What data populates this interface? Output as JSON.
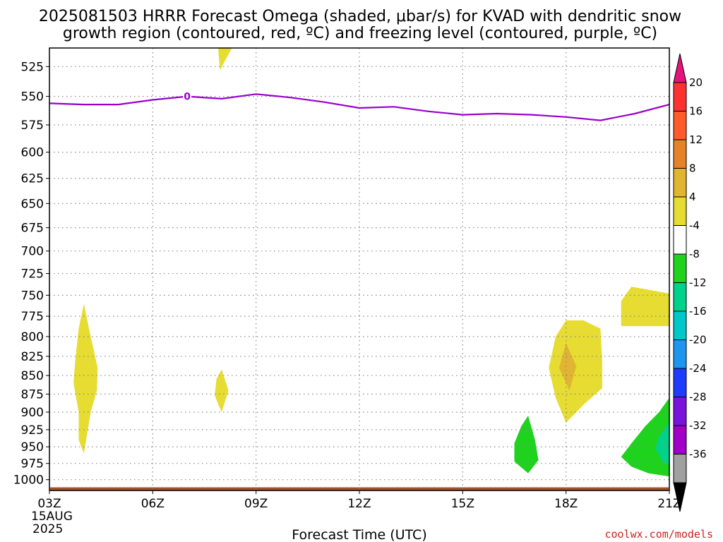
{
  "chart_data": {
    "type": "heatmap",
    "title_line1": "2025081503 HRRR Forecast Omega (shaded, μbar/s) for KVAD with dendritic snow",
    "title_line2": "growth region (contoured, red, ºC) and freezing level (contoured, purple, ºC)",
    "xlabel": "Forecast Time (UTC)",
    "x_tick_labels": [
      "03Z",
      "06Z",
      "09Z",
      "12Z",
      "15Z",
      "18Z",
      "21Z"
    ],
    "x_hours": [
      3,
      6,
      9,
      12,
      15,
      18,
      21
    ],
    "x_date_line1": "15AUG",
    "x_date_line2": "2025",
    "xlim": [
      3,
      21
    ],
    "y_ticks": [
      525,
      550,
      575,
      600,
      625,
      650,
      675,
      700,
      725,
      750,
      775,
      800,
      825,
      850,
      875,
      900,
      925,
      950,
      975,
      1000
    ],
    "y_tick_labels": [
      "525",
      "550",
      "575",
      "600",
      "625",
      "650",
      "675",
      "700",
      "725",
      "750",
      "775",
      "800",
      "825",
      "850",
      "875",
      "900",
      "925",
      "950",
      "975",
      "1000"
    ],
    "ylim": [
      510,
      1017
    ],
    "y_scale": "log",
    "y_inverted": true,
    "grid": true,
    "freezing_level": {
      "color": "#9900cc",
      "label": "0",
      "label_hour": 7.0,
      "points": [
        [
          3.0,
          556
        ],
        [
          4.0,
          557
        ],
        [
          5.0,
          557
        ],
        [
          6.0,
          553
        ],
        [
          7.0,
          550
        ],
        [
          8.0,
          552
        ],
        [
          9.0,
          548
        ],
        [
          10.0,
          551
        ],
        [
          11.0,
          555
        ],
        [
          12.0,
          560
        ],
        [
          13.0,
          559
        ],
        [
          14.0,
          563
        ],
        [
          15.0,
          566
        ],
        [
          16.0,
          565
        ],
        [
          17.0,
          566
        ],
        [
          18.0,
          568
        ],
        [
          19.0,
          571
        ],
        [
          20.0,
          565
        ],
        [
          21.0,
          557
        ]
      ]
    },
    "omega_regions": [
      {
        "level": "4 to 8",
        "color": "#e6dc32",
        "points": [
          [
            4.0,
            760
          ],
          [
            4.2,
            800
          ],
          [
            4.4,
            840
          ],
          [
            4.38,
            870
          ],
          [
            4.2,
            900
          ],
          [
            4.0,
            960
          ],
          [
            3.85,
            940
          ],
          [
            3.85,
            900
          ],
          [
            3.7,
            860
          ],
          [
            3.75,
            830
          ],
          [
            3.85,
            790
          ]
        ]
      },
      {
        "level": "4 to 8",
        "color": "#e6dc32",
        "points": [
          [
            8.0,
            842
          ],
          [
            8.2,
            870
          ],
          [
            8.0,
            900
          ],
          [
            7.8,
            877
          ],
          [
            7.85,
            855
          ]
        ]
      },
      {
        "level": "4 to 8",
        "color": "#e6dc32",
        "points": [
          [
            7.9,
            510
          ],
          [
            8.3,
            510
          ],
          [
            7.95,
            528
          ]
        ]
      },
      {
        "level": "4 to 8",
        "color": "#e6dc32",
        "points": [
          [
            18.0,
            780
          ],
          [
            18.5,
            780
          ],
          [
            19.0,
            790
          ],
          [
            19.05,
            830
          ],
          [
            19.05,
            867
          ],
          [
            18.5,
            890
          ],
          [
            18.0,
            915
          ],
          [
            17.7,
            880
          ],
          [
            17.5,
            840
          ],
          [
            17.7,
            800
          ]
        ]
      },
      {
        "level": "8 to 12",
        "color": "#e1b432",
        "points": [
          [
            18.0,
            808
          ],
          [
            18.3,
            838
          ],
          [
            18.1,
            870
          ],
          [
            17.8,
            840
          ]
        ]
      },
      {
        "level": "4 to 8",
        "color": "#e6dc32",
        "points": [
          [
            19.9,
            740
          ],
          [
            20.3,
            743
          ],
          [
            21.0,
            748
          ],
          [
            21.0,
            787
          ],
          [
            20.3,
            787
          ],
          [
            19.6,
            787
          ],
          [
            19.6,
            757
          ]
        ]
      },
      {
        "level": "-8 to -4",
        "color": "#1ed21e",
        "points": [
          [
            16.9,
            905
          ],
          [
            17.1,
            940
          ],
          [
            17.2,
            970
          ],
          [
            16.9,
            990
          ],
          [
            16.5,
            972
          ],
          [
            16.5,
            945
          ],
          [
            16.7,
            920
          ]
        ]
      },
      {
        "level": "-8 to -4",
        "color": "#1ed21e",
        "points": [
          [
            21.0,
            880
          ],
          [
            20.7,
            900
          ],
          [
            20.3,
            920
          ],
          [
            19.9,
            945
          ],
          [
            19.6,
            965
          ],
          [
            19.9,
            980
          ],
          [
            20.4,
            990
          ],
          [
            21.0,
            995
          ]
        ]
      },
      {
        "level": "-12 to -8",
        "color": "#00d28c",
        "points": [
          [
            21.0,
            915
          ],
          [
            20.7,
            935
          ],
          [
            20.6,
            952
          ],
          [
            20.8,
            972
          ],
          [
            21.0,
            978
          ]
        ]
      }
    ],
    "terrain": {
      "color": "#a0522d",
      "top_pressure": 1012
    },
    "colorbar": {
      "labels": [
        "20",
        "16",
        "12",
        "8",
        "4",
        "-4",
        "-8",
        "-12",
        "-16",
        "-20",
        "-24",
        "-28",
        "-32",
        "-36"
      ],
      "colors": [
        "#ff3232",
        "#ff5a2a",
        "#e68228",
        "#e1b432",
        "#e6dc32",
        "#ffffff",
        "#1ed21e",
        "#00d28c",
        "#00c8c8",
        "#1e96f0",
        "#1e3cff",
        "#7814dc",
        "#a000c8",
        "#a0a0a0"
      ],
      "top_arrow_color": "#e6147a",
      "bottom_arrow_color": "#000000"
    }
  },
  "credit": "coolwx.com/models"
}
